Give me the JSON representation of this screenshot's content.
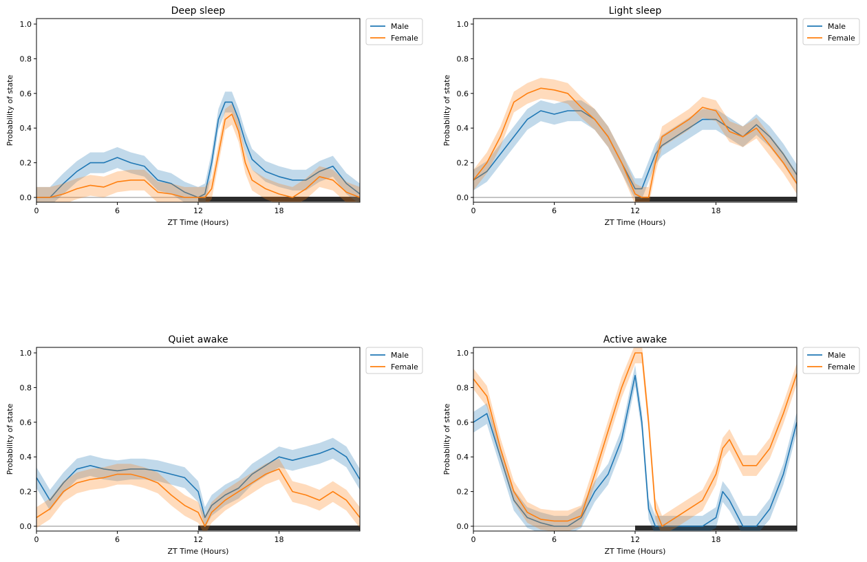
{
  "chart_data": [
    {
      "type": "line",
      "title": "Deep sleep",
      "xlabel": "ZT Time (Hours)",
      "ylabel": "Probability of state",
      "xlim": [
        0,
        24
      ],
      "ylim": [
        0,
        1.0
      ],
      "xticks": [
        0,
        6,
        12,
        18
      ],
      "xtick_labels": [
        "0",
        "6",
        "12",
        "18"
      ],
      "yticks": [
        0,
        0.2,
        0.4,
        0.6,
        0.8,
        1.0
      ],
      "ytick_labels": [
        "0.0",
        "0.2",
        "0.4",
        "0.6",
        "0.8",
        "1.0"
      ],
      "legend": [
        "Male",
        "Female"
      ],
      "legend_position": "outside-top-right",
      "x": [
        0,
        1,
        2,
        3,
        4,
        5,
        6,
        7,
        8,
        9,
        10,
        11,
        12,
        12.5,
        13,
        13.5,
        14,
        14.5,
        15,
        15.5,
        16,
        17,
        18,
        19,
        20,
        21,
        22,
        23,
        24
      ],
      "series": [
        {
          "name": "Male",
          "color": "#1f77b4",
          "values": [
            0.0,
            0.0,
            0.08,
            0.15,
            0.2,
            0.2,
            0.23,
            0.2,
            0.18,
            0.1,
            0.08,
            0.03,
            0.0,
            0.02,
            0.2,
            0.45,
            0.55,
            0.55,
            0.45,
            0.32,
            0.22,
            0.15,
            0.12,
            0.1,
            0.1,
            0.15,
            0.18,
            0.08,
            0.02
          ]
        },
        {
          "name": "Female",
          "color": "#ff7f0e",
          "values": [
            0.0,
            0.0,
            0.02,
            0.05,
            0.07,
            0.06,
            0.09,
            0.1,
            0.1,
            0.03,
            0.02,
            0.0,
            0.0,
            0.0,
            0.05,
            0.25,
            0.45,
            0.48,
            0.38,
            0.2,
            0.1,
            0.05,
            0.02,
            0.0,
            0.05,
            0.12,
            0.1,
            0.03,
            0.0
          ]
        }
      ]
    },
    {
      "type": "line",
      "title": "Light sleep",
      "xlabel": "ZT Time (Hours)",
      "ylabel": "Probability of state",
      "xlim": [
        0,
        24
      ],
      "ylim": [
        0,
        1.0
      ],
      "xticks": [
        0,
        6,
        12,
        18
      ],
      "xtick_labels": [
        "0",
        "6",
        "12",
        "18"
      ],
      "yticks": [
        0,
        0.2,
        0.4,
        0.6,
        0.8,
        1.0
      ],
      "ytick_labels": [
        "0.0",
        "0.2",
        "0.4",
        "0.6",
        "0.8",
        "1.0"
      ],
      "legend": [
        "Male",
        "Female"
      ],
      "legend_position": "outside-top-right",
      "x": [
        0,
        1,
        2,
        3,
        4,
        5,
        6,
        7,
        8,
        9,
        10,
        11,
        12,
        12.5,
        13,
        13.5,
        14,
        15,
        16,
        17,
        18,
        19,
        20,
        21,
        22,
        23,
        24
      ],
      "series": [
        {
          "name": "Male",
          "color": "#1f77b4",
          "values": [
            0.1,
            0.15,
            0.25,
            0.35,
            0.45,
            0.5,
            0.48,
            0.5,
            0.5,
            0.45,
            0.35,
            0.2,
            0.05,
            0.05,
            0.15,
            0.25,
            0.3,
            0.35,
            0.4,
            0.45,
            0.45,
            0.4,
            0.35,
            0.42,
            0.35,
            0.25,
            0.13
          ]
        },
        {
          "name": "Female",
          "color": "#ff7f0e",
          "values": [
            0.1,
            0.2,
            0.35,
            0.55,
            0.6,
            0.63,
            0.62,
            0.6,
            0.52,
            0.45,
            0.35,
            0.2,
            0.02,
            0.0,
            0.0,
            0.2,
            0.35,
            0.4,
            0.45,
            0.52,
            0.5,
            0.38,
            0.35,
            0.4,
            0.3,
            0.2,
            0.08
          ]
        }
      ]
    },
    {
      "type": "line",
      "title": "Quiet awake",
      "xlabel": "ZT Time (Hours)",
      "ylabel": "Probability of state",
      "xlim": [
        0,
        24
      ],
      "ylim": [
        0,
        1.0
      ],
      "xticks": [
        0,
        6,
        12,
        18
      ],
      "xtick_labels": [
        "0",
        "6",
        "12",
        "18"
      ],
      "yticks": [
        0,
        0.2,
        0.4,
        0.6,
        0.8,
        1.0
      ],
      "ytick_labels": [
        "0.0",
        "0.2",
        "0.4",
        "0.6",
        "0.8",
        "1.0"
      ],
      "legend": [
        "Male",
        "Female"
      ],
      "legend_position": "outside-top-right",
      "x": [
        0,
        1,
        2,
        3,
        4,
        5,
        6,
        7,
        8,
        9,
        10,
        11,
        12,
        12.5,
        13,
        14,
        15,
        16,
        17,
        18,
        19,
        20,
        21,
        22,
        23,
        24
      ],
      "series": [
        {
          "name": "Male",
          "color": "#1f77b4",
          "values": [
            0.28,
            0.15,
            0.25,
            0.33,
            0.35,
            0.33,
            0.32,
            0.33,
            0.33,
            0.32,
            0.3,
            0.28,
            0.2,
            0.05,
            0.12,
            0.18,
            0.22,
            0.3,
            0.35,
            0.4,
            0.38,
            0.4,
            0.42,
            0.45,
            0.4,
            0.27
          ]
        },
        {
          "name": "Female",
          "color": "#ff7f0e",
          "values": [
            0.05,
            0.1,
            0.2,
            0.25,
            0.27,
            0.28,
            0.3,
            0.3,
            0.28,
            0.25,
            0.18,
            0.12,
            0.08,
            0.0,
            0.08,
            0.15,
            0.2,
            0.25,
            0.3,
            0.33,
            0.2,
            0.18,
            0.15,
            0.2,
            0.15,
            0.05
          ]
        }
      ]
    },
    {
      "type": "line",
      "title": "Active awake",
      "xlabel": "ZT Time (Hours)",
      "ylabel": "Probability of state",
      "xlim": [
        0,
        24
      ],
      "ylim": [
        0,
        1.0
      ],
      "xticks": [
        0,
        6,
        12,
        18
      ],
      "xtick_labels": [
        "0",
        "6",
        "12",
        "18"
      ],
      "yticks": [
        0,
        0.2,
        0.4,
        0.6,
        0.8,
        1.0
      ],
      "ytick_labels": [
        "0.0",
        "0.2",
        "0.4",
        "0.6",
        "0.8",
        "1.0"
      ],
      "legend": [
        "Male",
        "Female"
      ],
      "legend_position": "outside-top-right",
      "x": [
        0,
        1,
        2,
        3,
        4,
        5,
        6,
        7,
        8,
        9,
        10,
        11,
        12,
        12.5,
        13,
        13.5,
        14,
        15,
        16,
        17,
        18,
        18.5,
        19,
        20,
        21,
        22,
        23,
        24
      ],
      "series": [
        {
          "name": "Male",
          "color": "#1f77b4",
          "values": [
            0.6,
            0.65,
            0.4,
            0.15,
            0.05,
            0.02,
            0.0,
            0.0,
            0.05,
            0.2,
            0.3,
            0.5,
            0.87,
            0.6,
            0.1,
            0.0,
            0.0,
            0.0,
            0.0,
            0.0,
            0.05,
            0.2,
            0.15,
            0.0,
            0.0,
            0.1,
            0.3,
            0.6
          ]
        },
        {
          "name": "Female",
          "color": "#ff7f0e",
          "values": [
            0.85,
            0.75,
            0.45,
            0.2,
            0.08,
            0.04,
            0.03,
            0.03,
            0.06,
            0.3,
            0.55,
            0.8,
            1.0,
            1.0,
            0.6,
            0.1,
            0.0,
            0.05,
            0.1,
            0.15,
            0.3,
            0.45,
            0.5,
            0.35,
            0.35,
            0.45,
            0.65,
            0.88
          ]
        }
      ]
    }
  ]
}
